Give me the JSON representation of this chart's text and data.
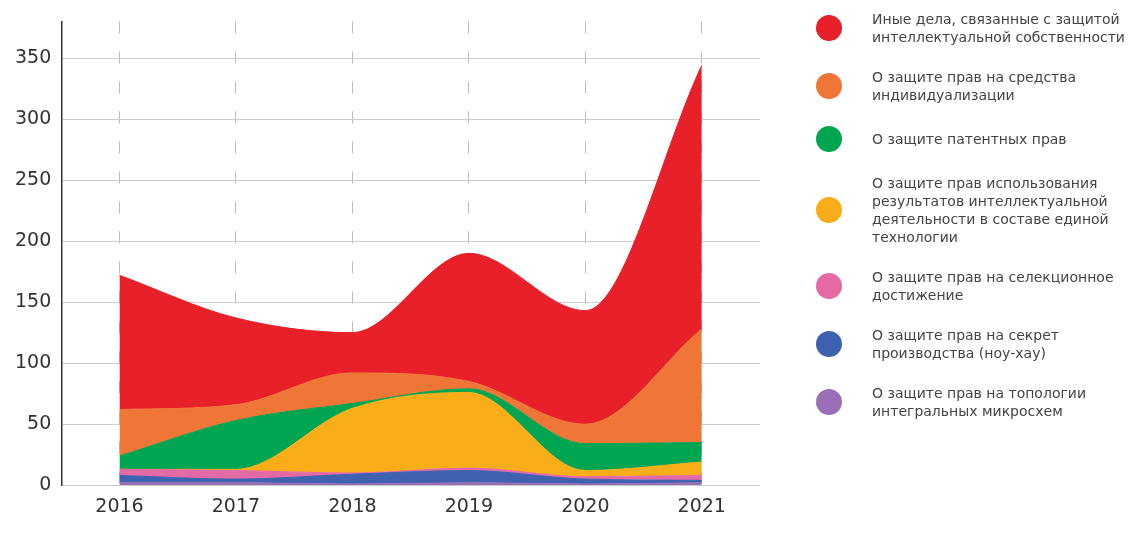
{
  "chart_data": {
    "type": "area",
    "stacked": true,
    "categories": [
      "2016",
      "2017",
      "2018",
      "2019",
      "2020",
      "2021"
    ],
    "series": [
      {
        "name": "О защите прав на топологии интегральных микросхем",
        "color": "#9b6fb5",
        "values": [
          2,
          2,
          1,
          2,
          1,
          2
        ]
      },
      {
        "name": "О защите прав на секрет производства (ноу-хау)",
        "color": "#3f62b0",
        "values": [
          6,
          3,
          8,
          10,
          4,
          2
        ]
      },
      {
        "name": "О защите прав на селекционное достижение",
        "color": "#e46aa6",
        "values": [
          5,
          7,
          1,
          2,
          2,
          4
        ]
      },
      {
        "name": "О защите прав использования результатов интеллектуальной деятельности в составе единой технологии",
        "color": "#f9ae19",
        "values": [
          0,
          1,
          53,
          62,
          5,
          11
        ]
      },
      {
        "name": "О защите патентных прав",
        "color": "#00a551",
        "values": [
          11,
          40,
          4,
          3,
          22,
          16
        ]
      },
      {
        "name": "О защите прав на средства индивидуализации",
        "color": "#ef7637",
        "values": [
          38,
          13,
          25,
          6,
          16,
          93
        ]
      },
      {
        "name": "Иные дела, связанные с защитой интеллектуальной собственности",
        "color": "#e8202a",
        "values": [
          110,
          71,
          33,
          105,
          93,
          216
        ]
      }
    ],
    "ylim": [
      0,
      380
    ],
    "yticks": [
      0,
      50,
      100,
      150,
      200,
      250,
      300,
      350
    ],
    "grid": true,
    "legend": "right"
  }
}
